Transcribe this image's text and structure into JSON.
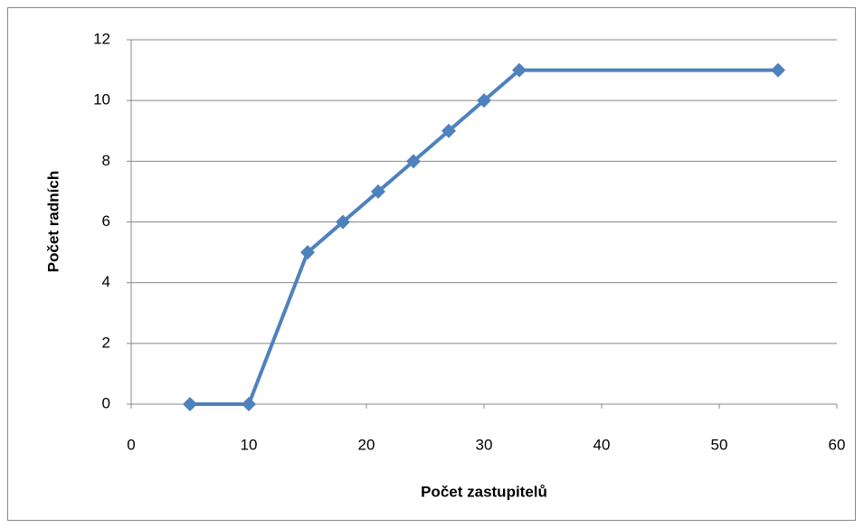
{
  "chart_data": {
    "type": "line",
    "x_label": "Počet zastupitelů",
    "y_label": "Počet radních",
    "series": [
      {
        "color": "#4f81bd",
        "x": [
          5,
          10,
          15,
          18,
          21,
          24,
          27,
          30,
          33,
          55
        ],
        "values": [
          0,
          0,
          5,
          6,
          7,
          8,
          9,
          10,
          11,
          11
        ]
      }
    ],
    "xlim": [
      0,
      60
    ],
    "xticks": [
      0,
      10,
      20,
      30,
      40,
      50,
      60
    ],
    "ylim": [
      0,
      12
    ],
    "yticks": [
      0,
      2,
      4,
      6,
      8,
      10,
      12
    ],
    "grid": true,
    "marker": "diamond"
  }
}
